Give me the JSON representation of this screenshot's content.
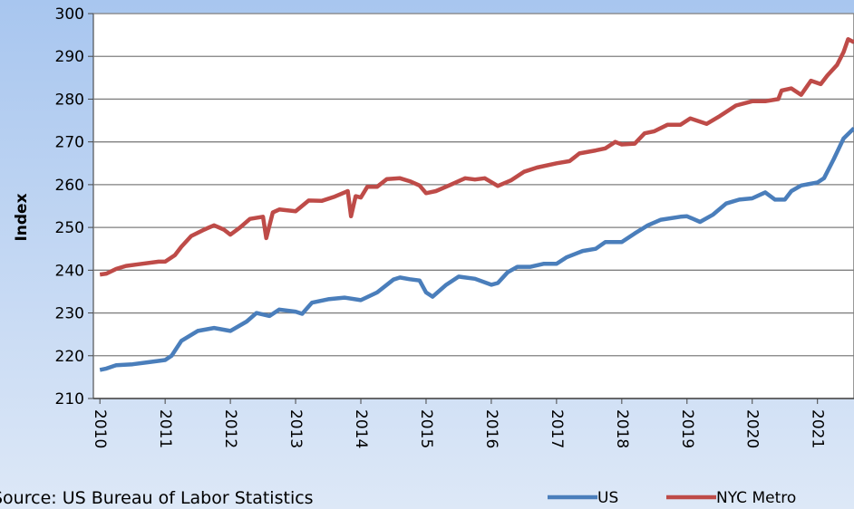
{
  "chart_data": {
    "type": "line",
    "y_label": "Index",
    "source": "Source: US Bureau of Labor Statistics",
    "xlim": [
      2009.9,
      2021.56
    ],
    "xticks": [
      2010,
      2011,
      2012,
      2013,
      2014,
      2015,
      2016,
      2017,
      2018,
      2019,
      2020,
      2021
    ],
    "ylim": [
      210,
      300
    ],
    "yticks": [
      210,
      220,
      230,
      240,
      250,
      260,
      270,
      280,
      290,
      300
    ],
    "grid": true,
    "legend": "bottom-right",
    "series": [
      {
        "name": "US",
        "color": "#4a7ebb",
        "x": [
          2010.0,
          2010.1,
          2010.25,
          2010.5,
          2010.75,
          2011.0,
          2011.1,
          2011.25,
          2011.5,
          2011.75,
          2012.0,
          2012.25,
          2012.4,
          2012.6,
          2012.75,
          2013.0,
          2013.1,
          2013.25,
          2013.5,
          2013.75,
          2014.0,
          2014.25,
          2014.5,
          2014.6,
          2014.75,
          2014.9,
          2015.0,
          2015.1,
          2015.3,
          2015.5,
          2015.75,
          2016.0,
          2016.1,
          2016.25,
          2016.4,
          2016.6,
          2016.8,
          2017.0,
          2017.15,
          2017.4,
          2017.6,
          2017.75,
          2018.0,
          2018.2,
          2018.4,
          2018.6,
          2018.9,
          2019.0,
          2019.2,
          2019.4,
          2019.6,
          2019.8,
          2020.0,
          2020.2,
          2020.35,
          2020.5,
          2020.6,
          2020.75,
          2021.0,
          2021.1,
          2021.25,
          2021.4,
          2021.56
        ],
        "values": [
          216.7,
          217,
          217.8,
          218,
          218.5,
          219,
          220,
          223.5,
          225.8,
          226.5,
          225.8,
          228,
          230,
          229.3,
          230.8,
          230.3,
          229.8,
          232.4,
          233.2,
          233.6,
          233,
          234.8,
          237.8,
          238.3,
          237.9,
          237.6,
          234.8,
          233.8,
          236.5,
          238.5,
          238,
          236.6,
          237,
          239.5,
          240.8,
          240.8,
          241.5,
          241.5,
          243,
          244.5,
          245,
          246.6,
          246.6,
          248.6,
          250.5,
          251.8,
          252.5,
          252.6,
          251.3,
          253,
          255.6,
          256.5,
          256.8,
          258.2,
          256.5,
          256.5,
          258.5,
          259.8,
          260.5,
          261.5,
          266,
          270.8,
          273.2
        ]
      },
      {
        "name": "NYC Metro",
        "color": "#be4b48",
        "x": [
          2010.0,
          2010.1,
          2010.25,
          2010.4,
          2010.6,
          2010.9,
          2011.0,
          2011.15,
          2011.25,
          2011.4,
          2011.6,
          2011.75,
          2011.9,
          2012.0,
          2012.15,
          2012.3,
          2012.5,
          2012.55,
          2012.65,
          2012.75,
          2013.0,
          2013.2,
          2013.4,
          2013.6,
          2013.8,
          2013.85,
          2013.92,
          2014.0,
          2014.1,
          2014.25,
          2014.4,
          2014.6,
          2014.75,
          2014.9,
          2015.0,
          2015.15,
          2015.35,
          2015.6,
          2015.75,
          2015.9,
          2016.0,
          2016.1,
          2016.3,
          2016.5,
          2016.7,
          2017.0,
          2017.2,
          2017.35,
          2017.6,
          2017.75,
          2017.9,
          2018.0,
          2018.2,
          2018.35,
          2018.5,
          2018.7,
          2018.9,
          2019.05,
          2019.3,
          2019.5,
          2019.75,
          2020.0,
          2020.2,
          2020.4,
          2020.45,
          2020.6,
          2020.75,
          2020.9,
          2021.05,
          2021.15,
          2021.3,
          2021.4,
          2021.47,
          2021.56
        ],
        "values": [
          239,
          239.2,
          240.3,
          241,
          241.4,
          242,
          242,
          243.5,
          245.5,
          248,
          249.5,
          250.5,
          249.5,
          248.3,
          250,
          252,
          252.5,
          247.5,
          253.5,
          254.2,
          253.8,
          256.3,
          256.2,
          257.2,
          258.5,
          252.6,
          257.3,
          257,
          259.5,
          259.5,
          261.3,
          261.5,
          260.8,
          259.8,
          258,
          258.5,
          259.8,
          261.5,
          261.2,
          261.5,
          260.6,
          259.7,
          261,
          263,
          264,
          265,
          265.5,
          267.3,
          268,
          268.5,
          270,
          269.4,
          269.6,
          272,
          272.5,
          274,
          274,
          275.5,
          274.2,
          276,
          278.5,
          279.5,
          279.5,
          280,
          282,
          282.5,
          281,
          284.3,
          283.5,
          285.5,
          288,
          291,
          294,
          293.3
        ]
      }
    ]
  }
}
